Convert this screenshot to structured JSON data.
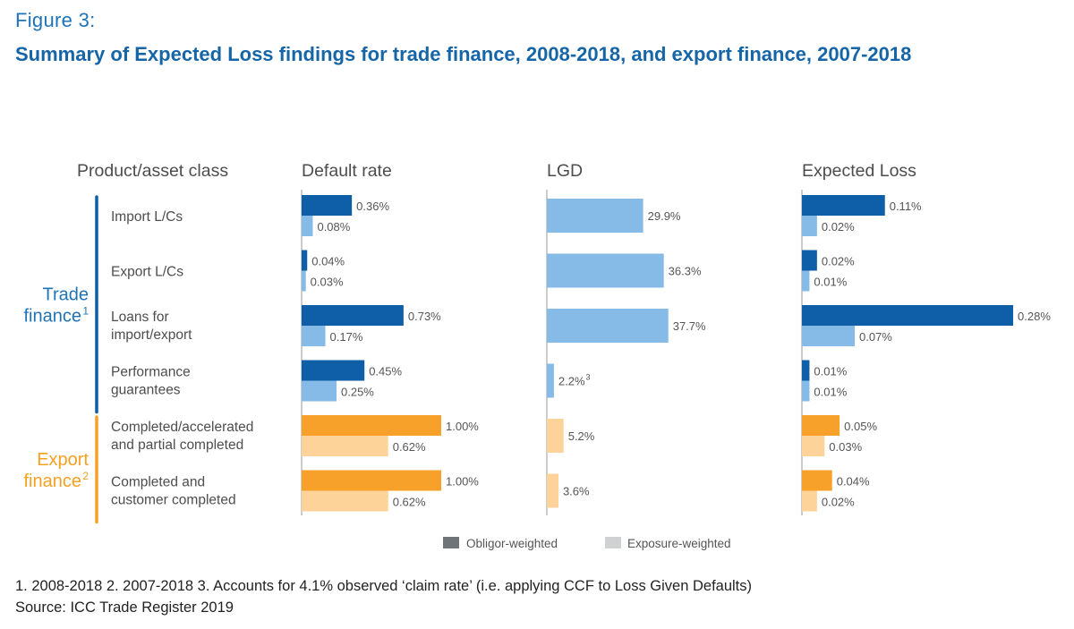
{
  "figure_label": "Figure 3:",
  "title": "Summary of Expected Loss findings for trade finance, 2008-2018, and export finance, 2007-2018",
  "footnotes": {
    "line1": "1. 2008-2018 2. 2007-2018 3. Accounts for 4.1% observed ‘claim rate’ (i.e. applying CCF to Loss Given Defaults)",
    "line2": "Source: ICC Trade Register 2019"
  },
  "colors": {
    "trade_dark": "#0e5ea8",
    "trade_light": "#86bbe8",
    "export_dark": "#f7a12b",
    "export_light": "#fdd39a",
    "legend_dark": "#6f7478",
    "legend_light": "#cfd1d3",
    "axis": "#9a9a9a",
    "trade_text": "#1f73b7",
    "export_text": "#f4a021"
  },
  "chart_data": {
    "type": "bar",
    "column_headers": {
      "row_label": "Product/asset class",
      "default_rate": "Default rate",
      "lgd": "LGD",
      "expected_loss": "Expected Loss"
    },
    "groups": [
      {
        "label": "Trade",
        "label2": "finance",
        "sup": "1",
        "key": "trade"
      },
      {
        "label": "Export",
        "label2": "finance",
        "sup": "2",
        "key": "export"
      }
    ],
    "legend": [
      "Obligor-weighted",
      "Exposure-weighted"
    ],
    "rows": [
      {
        "label": [
          "Import L/Cs"
        ],
        "group": "trade",
        "dr_obl": 0.36,
        "dr_obl_label": "0.36%",
        "dr_exp": 0.08,
        "dr_exp_label": "0.08%",
        "lgd": 29.9,
        "lgd_label": "29.9%",
        "lgd_sup": "",
        "el_obl": 0.11,
        "el_obl_label": "0.11%",
        "el_exp": 0.02,
        "el_exp_label": "0.02%"
      },
      {
        "label": [
          "Export L/Cs"
        ],
        "group": "trade",
        "dr_obl": 0.04,
        "dr_obl_label": "0.04%",
        "dr_exp": 0.03,
        "dr_exp_label": "0.03%",
        "lgd": 36.3,
        "lgd_label": "36.3%",
        "lgd_sup": "",
        "el_obl": 0.02,
        "el_obl_label": "0.02%",
        "el_exp": 0.01,
        "el_exp_label": "0.01%"
      },
      {
        "label": [
          "Loans for",
          "import/export"
        ],
        "group": "trade",
        "dr_obl": 0.73,
        "dr_obl_label": "0.73%",
        "dr_exp": 0.17,
        "dr_exp_label": "0.17%",
        "lgd": 37.7,
        "lgd_label": "37.7%",
        "lgd_sup": "",
        "el_obl": 0.28,
        "el_obl_label": "0.28%",
        "el_exp": 0.07,
        "el_exp_label": "0.07%"
      },
      {
        "label": [
          "Performance",
          "guarantees"
        ],
        "group": "trade",
        "dr_obl": 0.45,
        "dr_obl_label": "0.45%",
        "dr_exp": 0.25,
        "dr_exp_label": "0.25%",
        "lgd": 2.2,
        "lgd_label": "2.2%",
        "lgd_sup": "3",
        "el_obl": 0.01,
        "el_obl_label": "0.01%",
        "el_exp": 0.01,
        "el_exp_label": "0.01%"
      },
      {
        "label": [
          "Completed/accelerated",
          "and partial completed"
        ],
        "group": "export",
        "dr_obl": 1.0,
        "dr_obl_label": "1.00%",
        "dr_exp": 0.62,
        "dr_exp_label": "0.62%",
        "lgd": 5.2,
        "lgd_label": "5.2%",
        "lgd_sup": "",
        "el_obl": 0.05,
        "el_obl_label": "0.05%",
        "el_exp": 0.03,
        "el_exp_label": "0.03%"
      },
      {
        "label": [
          "Completed and",
          "customer completed"
        ],
        "group": "export",
        "dr_obl": 1.0,
        "dr_obl_label": "1.00%",
        "dr_exp": 0.62,
        "dr_exp_label": "0.62%",
        "lgd": 3.6,
        "lgd_label": "3.6%",
        "lgd_sup": "",
        "el_obl": 0.04,
        "el_obl_label": "0.04%",
        "el_exp": 0.02,
        "el_exp_label": "0.02%"
      }
    ]
  }
}
